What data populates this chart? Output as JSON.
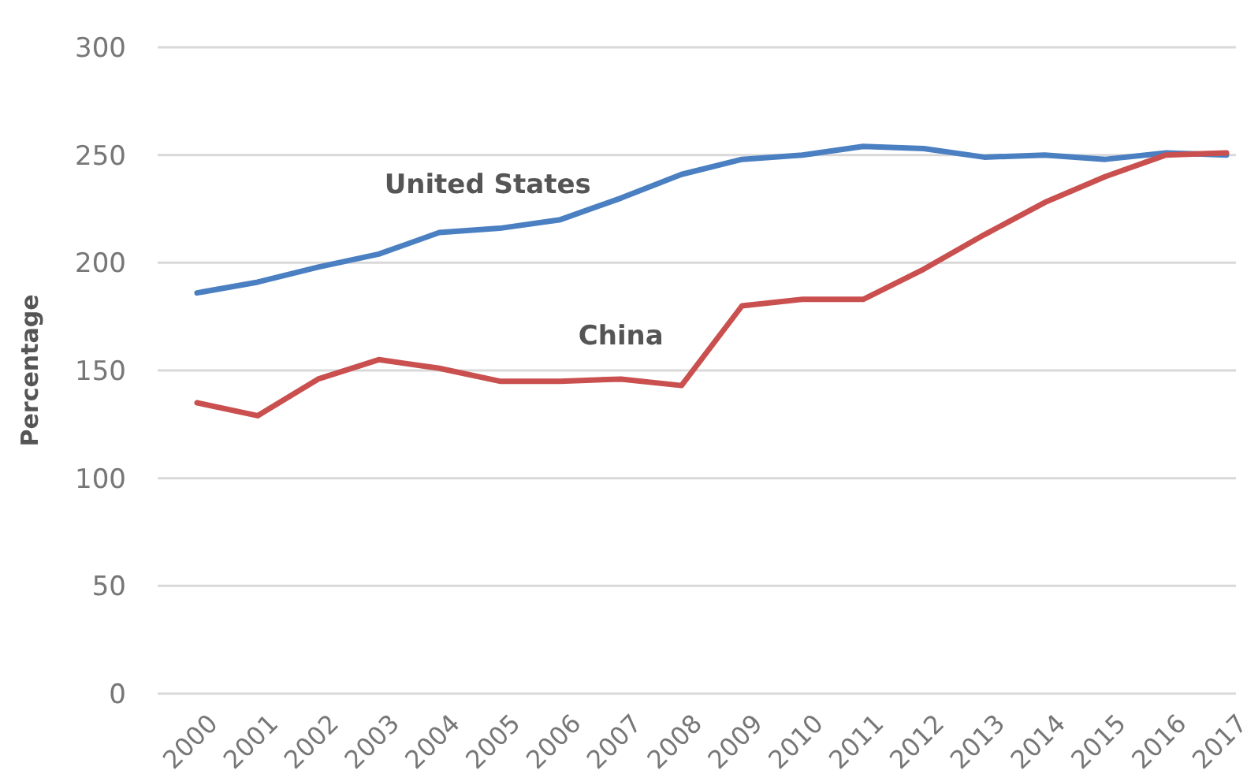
{
  "chart_data": {
    "type": "line",
    "ylabel": "Percentage",
    "categories": [
      "2000",
      "2001",
      "2002",
      "2003",
      "2004",
      "2005",
      "2006",
      "2007",
      "2008",
      "2009",
      "2010",
      "2011",
      "2012",
      "2013",
      "2014",
      "2015",
      "2016",
      "2017"
    ],
    "series": [
      {
        "name": "United States",
        "color": "#4a7fc1",
        "values": [
          186,
          191,
          198,
          204,
          214,
          216,
          220,
          230,
          241,
          248,
          250,
          254,
          253,
          249,
          250,
          248,
          251,
          250
        ]
      },
      {
        "name": "China",
        "color": "#c9504f",
        "values": [
          135,
          129,
          146,
          155,
          151,
          145,
          145,
          146,
          143,
          180,
          183,
          183,
          197,
          213,
          228,
          240,
          250,
          251
        ]
      }
    ],
    "ylim": [
      0,
      300
    ],
    "yticks": [
      0,
      50,
      100,
      150,
      200,
      250,
      300
    ],
    "grid": "y",
    "marker": "none",
    "line_style": "solid"
  }
}
